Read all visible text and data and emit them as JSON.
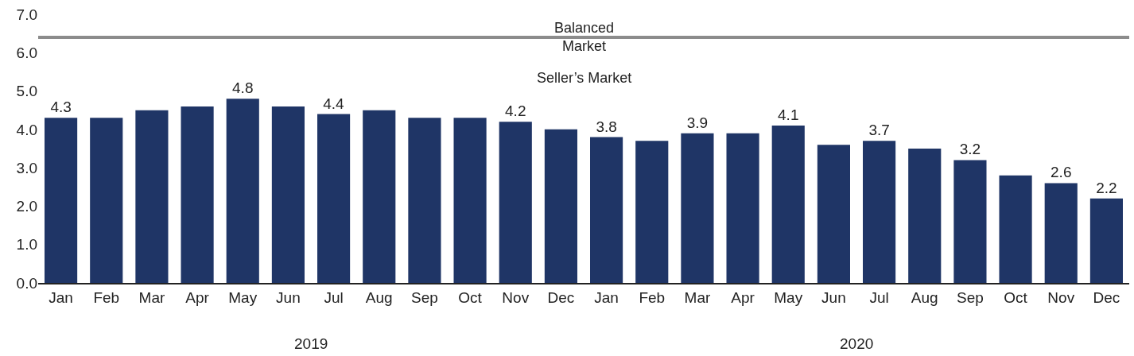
{
  "chart_data": {
    "type": "bar",
    "categories": [
      "Jan",
      "Feb",
      "Mar",
      "Apr",
      "May",
      "Jun",
      "Jul",
      "Aug",
      "Sep",
      "Oct",
      "Nov",
      "Dec",
      "Jan",
      "Feb",
      "Mar",
      "Apr",
      "May",
      "Jun",
      "Jul",
      "Aug",
      "Sep",
      "Oct",
      "Nov",
      "Dec"
    ],
    "values": [
      4.3,
      4.3,
      4.5,
      4.6,
      4.8,
      4.6,
      4.4,
      4.5,
      4.3,
      4.3,
      4.2,
      4.0,
      3.8,
      3.7,
      3.9,
      3.9,
      4.1,
      3.6,
      3.7,
      3.5,
      3.2,
      2.8,
      2.6,
      2.2
    ],
    "value_labels": [
      "4.3",
      null,
      null,
      null,
      "4.8",
      null,
      "4.4",
      null,
      null,
      null,
      "4.2",
      null,
      "3.8",
      null,
      "3.9",
      null,
      "4.1",
      null,
      "3.7",
      null,
      "3.2",
      null,
      "2.6",
      "2.2"
    ],
    "color": "#1f3566",
    "ylim": [
      0,
      7
    ],
    "yticks": [
      {
        "value": 0,
        "label": "0.0"
      },
      {
        "value": 1,
        "label": "1.0"
      },
      {
        "value": 2,
        "label": "2.0"
      },
      {
        "value": 3,
        "label": "3.0"
      },
      {
        "value": 4,
        "label": "4.0"
      },
      {
        "value": 5,
        "label": "5.0"
      },
      {
        "value": 6,
        "label": "6.0"
      },
      {
        "value": 7,
        "label": "7.0"
      }
    ],
    "ref_lines": [
      {
        "axis": "y",
        "value": 6.4,
        "label": "Balanced Market",
        "color": "#8c8c8c"
      }
    ],
    "annotations": [
      "Seller’s Market",
      "2019",
      "2020"
    ]
  }
}
